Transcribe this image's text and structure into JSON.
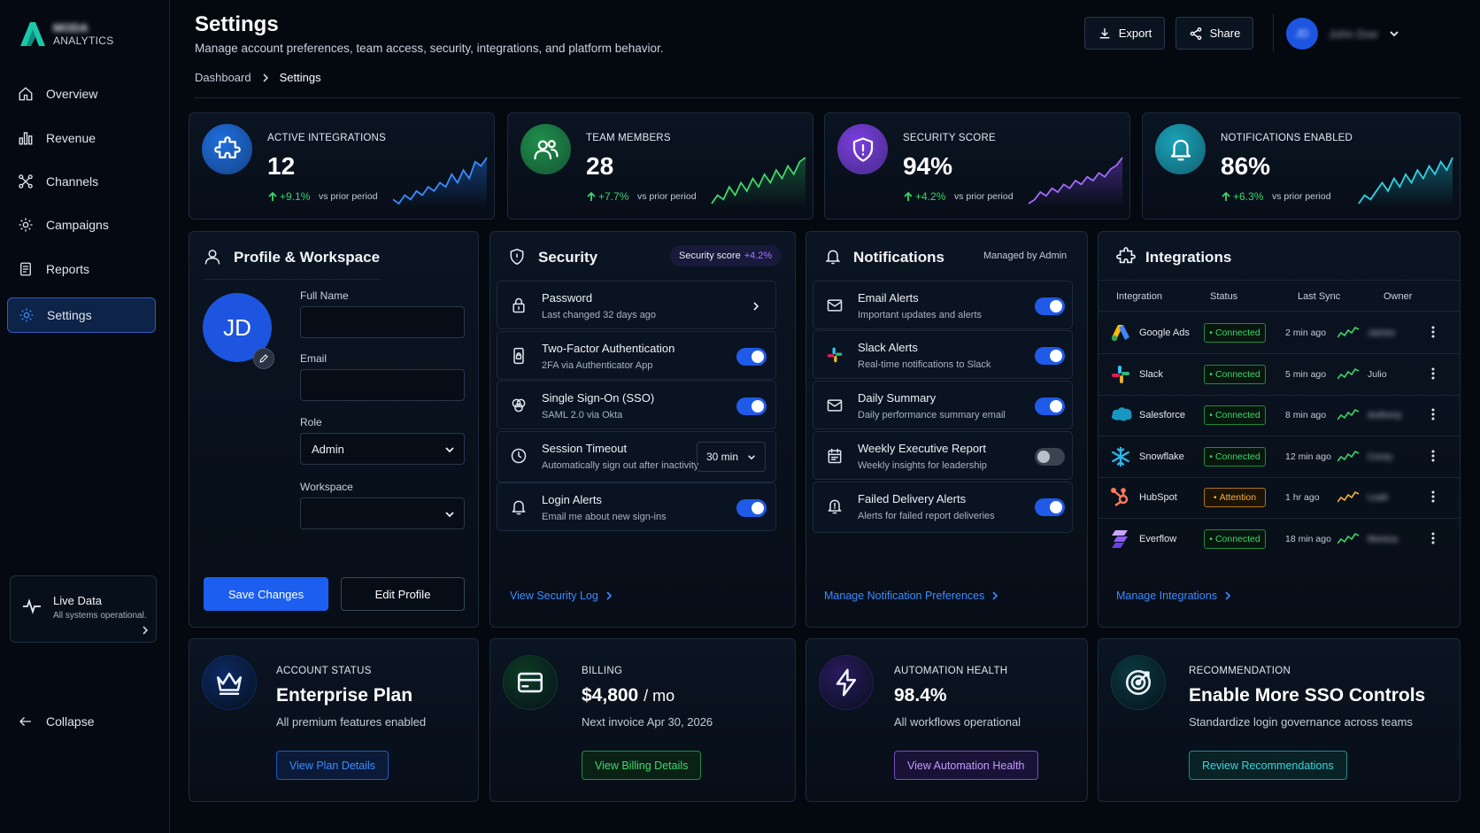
{
  "brand": {
    "name": "MODA",
    "sub": "ANALYTICS"
  },
  "sidebar": {
    "items": [
      {
        "label": "Overview",
        "icon": "home-icon"
      },
      {
        "label": "Revenue",
        "icon": "bar-chart-icon"
      },
      {
        "label": "Channels",
        "icon": "channels-icon"
      },
      {
        "label": "Campaigns",
        "icon": "gear-icon"
      },
      {
        "label": "Reports",
        "icon": "report-icon"
      },
      {
        "label": "Settings",
        "icon": "settings-icon",
        "active": true
      }
    ],
    "live": {
      "title": "Live Data",
      "sub": "All systems operational."
    },
    "collapse": "Collapse"
  },
  "header": {
    "title": "Settings",
    "subtitle": "Manage account preferences, team access, security, integrations, and platform behavior.",
    "breadcrumb": [
      "Dashboard",
      "Settings"
    ],
    "export": "Export",
    "share": "Share",
    "user": {
      "initials": "JD",
      "name": "John Doe"
    }
  },
  "kpis": [
    {
      "label": "ACTIVE INTEGRATIONS",
      "value": "12",
      "delta": "+9.1%",
      "prior": "vs prior period",
      "color": "#1f6fe0",
      "icon": "puzzle-icon",
      "spark": [
        4,
        3,
        5,
        4,
        6,
        5,
        7,
        6,
        8,
        7,
        10,
        8,
        11,
        9,
        13,
        12,
        14
      ]
    },
    {
      "label": "TEAM MEMBERS",
      "value": "28",
      "delta": "+7.7%",
      "prior": "vs prior period",
      "color": "#1f8f4a",
      "icon": "users-icon",
      "spark": [
        3,
        5,
        4,
        7,
        5,
        8,
        6,
        9,
        7,
        10,
        8,
        11,
        9,
        12,
        10,
        13,
        14
      ]
    },
    {
      "label": "SECURITY SCORE",
      "value": "94%",
      "delta": "+4.2%",
      "prior": "vs prior period",
      "color": "#7b3fe0",
      "icon": "shield-icon",
      "spark": [
        3,
        4,
        6,
        5,
        7,
        6,
        8,
        7,
        9,
        8,
        10,
        9,
        11,
        10,
        12,
        13,
        15
      ]
    },
    {
      "label": "NOTIFICATIONS ENABLED",
      "value": "86%",
      "delta": "+6.3%",
      "prior": "vs prior period",
      "color": "#1aa3b8",
      "icon": "bell-icon",
      "spark": [
        3,
        5,
        4,
        6,
        8,
        6,
        9,
        7,
        10,
        8,
        11,
        9,
        12,
        10,
        13,
        11,
        14
      ]
    }
  ],
  "profile": {
    "title": "Profile & Workspace",
    "initials": "JD",
    "fields": {
      "full_name": "Full Name",
      "email": "Email",
      "role": "Role",
      "role_value": "Admin",
      "workspace": "Workspace"
    },
    "save": "Save Changes",
    "edit": "Edit Profile"
  },
  "security": {
    "title": "Security",
    "badge_label": "Security score",
    "badge_value": "+4.2%",
    "rows": [
      {
        "title": "Password",
        "sub": "Last changed 32 days ago",
        "icon": "lock-icon"
      },
      {
        "title": "Two-Factor Authentication",
        "sub": "2FA via Authenticator App",
        "icon": "phone-lock-icon"
      },
      {
        "title": "Single Sign-On (SSO)",
        "sub": "SAML 2.0 via Okta",
        "icon": "sso-icon"
      },
      {
        "title": "Session Timeout",
        "sub": "Automatically sign out after inactivity",
        "icon": "clock-icon",
        "value": "30 min"
      },
      {
        "title": "Login Alerts",
        "sub": "Email me about new sign-ins",
        "icon": "bell-icon"
      }
    ],
    "link": "View Security Log"
  },
  "notifications": {
    "title": "Notifications",
    "managed": "Managed by Admin",
    "rows": [
      {
        "title": "Email Alerts",
        "sub": "Important updates and alerts",
        "icon": "mail-icon",
        "on": true
      },
      {
        "title": "Slack Alerts",
        "sub": "Real-time notifications to Slack",
        "icon": "slack-icon",
        "on": true
      },
      {
        "title": "Daily Summary",
        "sub": "Daily performance summary email",
        "icon": "mail-icon",
        "on": true
      },
      {
        "title": "Weekly Executive Report",
        "sub": "Weekly insights for leadership",
        "icon": "calendar-icon",
        "on": false
      },
      {
        "title": "Failed Delivery Alerts",
        "sub": "Alerts for failed report deliveries",
        "icon": "bell-alert-icon",
        "on": true
      }
    ],
    "link": "Manage Notification Preferences"
  },
  "integrations": {
    "title": "Integrations",
    "columns": [
      "Integration",
      "Status",
      "Last Sync",
      "Owner"
    ],
    "rows": [
      {
        "name": "Google Ads",
        "status": "Connected",
        "sync": "2 min ago",
        "owner": "James",
        "icon": "google-ads-icon"
      },
      {
        "name": "Slack",
        "status": "Connected",
        "sync": "5 min ago",
        "owner": "Julio",
        "icon": "slack-icon"
      },
      {
        "name": "Salesforce",
        "status": "Connected",
        "sync": "8 min ago",
        "owner": "Anthony",
        "icon": "salesforce-icon"
      },
      {
        "name": "Snowflake",
        "status": "Connected",
        "sync": "12 min ago",
        "owner": "Corey",
        "icon": "snowflake-icon"
      },
      {
        "name": "HubSpot",
        "status": "Attention",
        "sync": "1 hr ago",
        "owner": "Leah",
        "icon": "hubspot-icon"
      },
      {
        "name": "Everflow",
        "status": "Connected",
        "sync": "18 min ago",
        "owner": "Monica",
        "icon": "everflow-icon"
      }
    ],
    "link": "Manage Integrations"
  },
  "bottom": [
    {
      "label": "ACCOUNT STATUS",
      "title": "Enterprise Plan",
      "sub": "All premium features enabled",
      "button": "View Plan Details",
      "color": "#2d7bff",
      "icon": "crown-icon"
    },
    {
      "label": "BILLING",
      "title": "$4,800",
      "unit": "/ mo",
      "sub": "Next invoice Apr 30, 2026",
      "button": "View Billing Details",
      "color": "#2fbf5e",
      "icon": "card-icon"
    },
    {
      "label": "AUTOMATION HEALTH",
      "title": "98.4%",
      "sub": "All workflows operational",
      "button": "View Automation Health",
      "color": "#a36bff",
      "icon": "bolt-icon"
    },
    {
      "label": "RECOMMENDATION",
      "title": "Enable More SSO Controls",
      "sub": "Standardize login governance across teams",
      "button": "Review Recommendations",
      "color": "#21c3c9",
      "icon": "target-icon"
    }
  ]
}
